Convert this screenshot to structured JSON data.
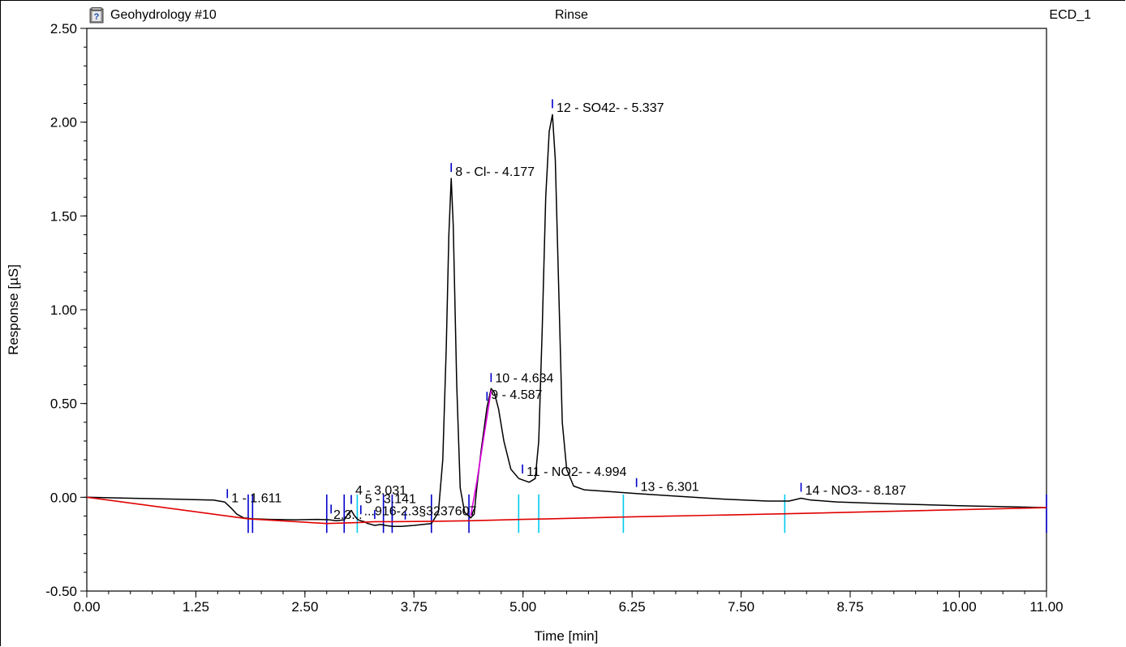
{
  "header": {
    "sample_name": "Geohydrology #10",
    "program_name": "Rinse",
    "channel_name": "ECD_1",
    "icon": "help-document-icon"
  },
  "chart_data": {
    "type": "line",
    "xlabel": "Time [min]",
    "ylabel": "Response [µS]",
    "xlim": [
      0,
      11
    ],
    "ylim": [
      -0.5,
      2.5
    ],
    "x_ticks": [
      "0.00",
      "1.25",
      "2.50",
      "3.75",
      "5.00",
      "6.25",
      "7.50",
      "8.75",
      "10.00",
      "11.00"
    ],
    "y_ticks": [
      "-0.50",
      "0.00",
      "0.50",
      "1.00",
      "1.50",
      "2.00",
      "2.50"
    ],
    "grid": false,
    "colors": {
      "signal": "#000000",
      "baseline": "#e00000",
      "peak_marker": "#0000cc",
      "delimiter": "#00ccee",
      "fit": "#e000e0"
    },
    "series": [
      {
        "role": "signal",
        "x": [
          0,
          0.5,
          1.0,
          1.45,
          1.58,
          1.66,
          1.72,
          1.8,
          1.9,
          2.1,
          2.4,
          2.65,
          2.78,
          2.86,
          2.95,
          3.0,
          3.031,
          3.07,
          3.11,
          3.141,
          3.18,
          3.22,
          3.3,
          3.37,
          3.42,
          3.5,
          3.6,
          3.75,
          3.95,
          4.03,
          4.08,
          4.12,
          4.15,
          4.177,
          4.2,
          4.24,
          4.28,
          4.33,
          4.4,
          4.44,
          4.47,
          4.52,
          4.587,
          4.634,
          4.67,
          4.72,
          4.78,
          4.86,
          4.95,
          5.07,
          5.14,
          5.18,
          5.22,
          5.26,
          5.3,
          5.337,
          5.37,
          5.41,
          5.45,
          5.5,
          5.58,
          5.7,
          6.0,
          6.301,
          6.8,
          7.3,
          7.8,
          8.05,
          8.187,
          8.3,
          8.6,
          9.2,
          10.0,
          11.0
        ],
        "y": [
          0.0,
          -0.005,
          -0.01,
          -0.015,
          -0.025,
          -0.06,
          -0.09,
          -0.11,
          -0.115,
          -0.118,
          -0.12,
          -0.118,
          -0.12,
          -0.125,
          -0.12,
          -0.085,
          -0.07,
          -0.1,
          -0.12,
          -0.125,
          -0.13,
          -0.14,
          -0.15,
          -0.145,
          -0.15,
          -0.155,
          -0.155,
          -0.15,
          -0.14,
          -0.08,
          0.2,
          0.8,
          1.4,
          1.7,
          1.45,
          0.6,
          0.05,
          -0.08,
          -0.11,
          -0.09,
          0.05,
          0.25,
          0.48,
          0.58,
          0.56,
          0.47,
          0.3,
          0.15,
          0.1,
          0.08,
          0.1,
          0.3,
          0.9,
          1.6,
          1.95,
          2.04,
          1.8,
          1.1,
          0.4,
          0.15,
          0.06,
          0.04,
          0.03,
          0.02,
          0.005,
          -0.01,
          -0.02,
          -0.02,
          -0.005,
          -0.015,
          -0.025,
          -0.035,
          -0.045,
          -0.055
        ]
      },
      {
        "role": "baseline",
        "x": [
          0,
          1.85,
          2.75,
          3.1,
          3.3,
          3.5,
          4.0,
          4.38,
          5.0,
          5.3,
          6.2,
          8.0,
          11.0
        ],
        "y": [
          0.0,
          -0.115,
          -0.14,
          -0.135,
          -0.13,
          -0.13,
          -0.128,
          -0.125,
          -0.118,
          -0.115,
          -0.105,
          -0.088,
          -0.055
        ]
      }
    ],
    "fit_segment": {
      "x": [
        4.4,
        4.47,
        4.55,
        4.634
      ],
      "y": [
        -0.1,
        0.08,
        0.32,
        0.57
      ]
    },
    "peak_labels": [
      {
        "text": "1 - 1.611",
        "x": 1.611,
        "y": 0.0
      },
      {
        "text": "2.3...",
        "x": 2.78,
        "y": -0.09
      },
      {
        "text": "4 - 3.031",
        "x": 3.031,
        "y": 0.04
      },
      {
        "text": "5 - 3.141",
        "x": 3.141,
        "y": -0.005
      },
      {
        "text": "...916-2.3§3237607",
        "x": 3.13,
        "y": -0.07
      },
      {
        "text": "8 - Cl- - 4.177",
        "x": 4.177,
        "y": 1.74
      },
      {
        "text": "9 - 4.587",
        "x": 4.587,
        "y": 0.55
      },
      {
        "text": "10 - 4.634",
        "x": 4.634,
        "y": 0.64
      },
      {
        "text": "11 - NO2- - 4.994",
        "x": 4.994,
        "y": 0.14
      },
      {
        "text": "12 - SO42- - 5.337",
        "x": 5.337,
        "y": 2.08
      },
      {
        "text": "13 - 6.301",
        "x": 6.301,
        "y": 0.06
      },
      {
        "text": "14 - NO3- - 8.187",
        "x": 8.187,
        "y": 0.04
      }
    ],
    "peak_ticks": [
      1.611,
      2.8,
      3.031,
      3.141,
      3.3,
      3.5,
      3.65,
      3.95,
      4.177,
      4.587,
      4.634,
      4.994,
      5.337,
      6.301,
      8.187
    ],
    "delimiters": [
      {
        "x": 1.85,
        "color": "peak_marker"
      },
      {
        "x": 1.9,
        "color": "peak_marker"
      },
      {
        "x": 2.75,
        "color": "peak_marker"
      },
      {
        "x": 2.95,
        "color": "peak_marker"
      },
      {
        "x": 3.1,
        "color": "delimiter"
      },
      {
        "x": 3.4,
        "color": "peak_marker"
      },
      {
        "x": 3.5,
        "color": "peak_marker"
      },
      {
        "x": 3.95,
        "color": "peak_marker"
      },
      {
        "x": 4.38,
        "color": "peak_marker"
      },
      {
        "x": 4.95,
        "color": "delimiter"
      },
      {
        "x": 5.18,
        "color": "delimiter"
      },
      {
        "x": 6.15,
        "color": "delimiter"
      },
      {
        "x": 8.0,
        "color": "delimiter"
      },
      {
        "x": 11.0,
        "color": "peak_marker"
      }
    ]
  }
}
